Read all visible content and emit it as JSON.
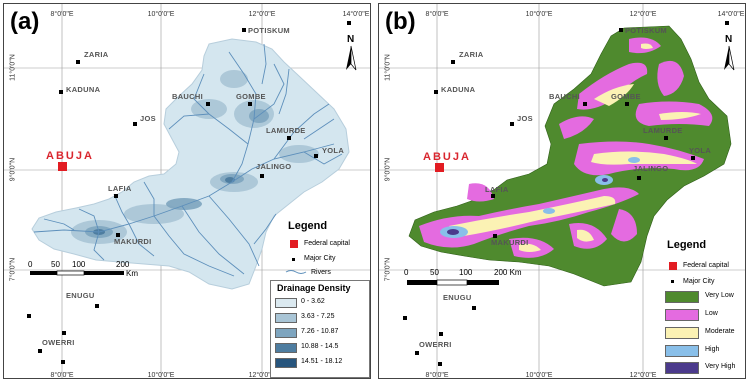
{
  "panels": {
    "a": {
      "label": "(a)"
    },
    "b": {
      "label": "(b)"
    }
  },
  "graticule": {
    "top": [
      "8°0'0\"E",
      "10°0'0\"E",
      "12°0'0\"E",
      "14°0'0\"E"
    ],
    "bottom": [
      "8°0'0\"E",
      "10°0'0\"E",
      "12°0'0\"E"
    ],
    "left": [
      "11°0'0\"N",
      "9°0'0\"N",
      "7°0'0\"N"
    ]
  },
  "cities": {
    "capital": "ABUJA",
    "potiskum": "POTISKUM",
    "zaria": "ZARIA",
    "kaduna": "KADUNA",
    "bauchi": "BAUCHI",
    "gombe": "GOMBE",
    "jos": "JOS",
    "lamurde": "LAMURDE",
    "yola": "YOLA",
    "jalingo": "JALINGO",
    "lafia": "LAFIA",
    "makurdi": "MAKURDI",
    "enugu": "ENUGU",
    "owerri": "OWERRI"
  },
  "north_arrow": "N",
  "scale_bar": {
    "ticks": [
      "0",
      "50",
      "100",
      "200"
    ],
    "unit_a": "Km",
    "ticks_b": [
      "0",
      "50",
      "100",
      "200 Km"
    ]
  },
  "legend": {
    "title": "Legend",
    "federal_capital": "Federal capital",
    "major_city": "Major City",
    "rivers": "Rivers"
  },
  "drainage_density": {
    "title": "Drainage Density",
    "classes": [
      {
        "label": "0 - 3.62",
        "color": "#dbe9f0"
      },
      {
        "label": "3.63 - 7.25",
        "color": "#a9c5d6"
      },
      {
        "label": "7.26 - 10.87",
        "color": "#7ea5bf"
      },
      {
        "label": "10.88 - 14.5",
        "color": "#4e7da0"
      },
      {
        "label": "14.51 - 18.12",
        "color": "#27557d"
      }
    ]
  },
  "levels": [
    {
      "label": "Very Low",
      "color": "#4f8a2e"
    },
    {
      "label": "Low",
      "color": "#e46be0"
    },
    {
      "label": "Moderate",
      "color": "#fbf2b4"
    },
    {
      "label": "High",
      "color": "#89bfe9"
    },
    {
      "label": "Very High",
      "color": "#4b3a8c"
    }
  ],
  "colors": {
    "capital": "#e21c22",
    "city": "#000000",
    "basin_fill": "#d4e6ef",
    "river": "#5d8fbb"
  }
}
